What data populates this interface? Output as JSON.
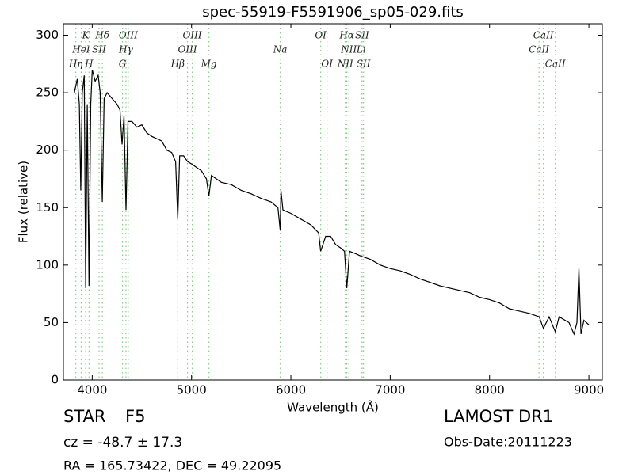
{
  "chart_data": {
    "type": "line",
    "title": "spec-55919-F5591906_sp05-029.fits",
    "xlabel": "Wavelength (Å)",
    "ylabel": "Flux (relative)",
    "xlim": [
      3710,
      9135
    ],
    "ylim": [
      0,
      310
    ],
    "xticks": [
      4000,
      5000,
      6000,
      7000,
      8000,
      9000
    ],
    "yticks": [
      0,
      50,
      100,
      150,
      200,
      250,
      300
    ],
    "line_color": "#8c8",
    "x": [
      3820,
      3850,
      3870,
      3885,
      3900,
      3920,
      3934,
      3950,
      3968,
      3985,
      4000,
      4030,
      4060,
      4080,
      4102,
      4120,
      4150,
      4200,
      4250,
      4280,
      4300,
      4320,
      4340,
      4360,
      4400,
      4450,
      4500,
      4550,
      4600,
      4650,
      4700,
      4750,
      4800,
      4840,
      4861,
      4880,
      4920,
      4960,
      5000,
      5050,
      5100,
      5150,
      5175,
      5200,
      5250,
      5300,
      5400,
      5500,
      5600,
      5700,
      5800,
      5870,
      5893,
      5900,
      5920,
      6000,
      6100,
      6200,
      6280,
      6300,
      6350,
      6400,
      6450,
      6500,
      6540,
      6563,
      6590,
      6650,
      6700,
      6800,
      6900,
      7000,
      7100,
      7200,
      7300,
      7400,
      7500,
      7600,
      7700,
      7800,
      7900,
      8000,
      8100,
      8200,
      8300,
      8400,
      8500,
      8542,
      8600,
      8662,
      8700,
      8800,
      8850,
      8880,
      8900,
      8920,
      8950,
      9000
    ],
    "series": [
      {
        "name": "flux",
        "color": "#000000",
        "values": [
          250,
          262,
          240,
          165,
          250,
          265,
          80,
          240,
          82,
          240,
          270,
          260,
          265,
          250,
          155,
          245,
          250,
          245,
          240,
          235,
          205,
          230,
          148,
          225,
          225,
          220,
          222,
          215,
          212,
          210,
          208,
          200,
          198,
          190,
          140,
          195,
          195,
          190,
          188,
          185,
          182,
          175,
          160,
          178,
          175,
          172,
          170,
          165,
          162,
          158,
          155,
          150,
          130,
          165,
          148,
          145,
          140,
          135,
          128,
          112,
          125,
          125,
          118,
          115,
          112,
          80,
          112,
          110,
          108,
          105,
          100,
          97,
          95,
          92,
          88,
          85,
          82,
          80,
          78,
          76,
          72,
          70,
          67,
          62,
          60,
          58,
          55,
          45,
          55,
          42,
          55,
          50,
          40,
          50,
          97,
          40,
          52,
          48
        ]
      }
    ],
    "line_labels": [
      [
        {
          "label": "K",
          "x": 3934
        },
        {
          "label": "Hδ",
          "x": 4102
        },
        {
          "label": "OIII",
          "x": 4363
        },
        {
          "label": "OIII",
          "x": 5007
        },
        {
          "label": "OI",
          "x": 6300
        },
        {
          "label": "Hα",
          "x": 6563
        },
        {
          "label": "SII",
          "x": 6717
        },
        {
          "label": "CaII",
          "x": 8542
        }
      ],
      [
        {
          "label": "HeI",
          "x": 3889
        },
        {
          "label": "SII",
          "x": 4069
        },
        {
          "label": "Hγ",
          "x": 4340
        },
        {
          "label": "OIII",
          "x": 4959
        },
        {
          "label": "Na",
          "x": 5893
        },
        {
          "label": "NII",
          "x": 6584
        },
        {
          "label": "Li",
          "x": 6708
        },
        {
          "label": "CaII",
          "x": 8498
        }
      ],
      [
        {
          "label": "Hη",
          "x": 3835
        },
        {
          "label": "H",
          "x": 3968
        },
        {
          "label": "G",
          "x": 4305
        },
        {
          "label": "Hβ",
          "x": 4861
        },
        {
          "label": "Mg",
          "x": 5175
        },
        {
          "label": "OI",
          "x": 6364
        },
        {
          "label": "NII",
          "x": 6548
        },
        {
          "label": "SII",
          "x": 6731
        },
        {
          "label": "CaII",
          "x": 8662
        }
      ]
    ],
    "object_class": "STAR",
    "subclass": "F5",
    "redshift_text": "cz = -48.7 ± 17.3",
    "coords_text": "RA = 165.73422, DEC = 49.22095",
    "survey": "LAMOST DR1",
    "obs_date": "Obs-Date:20111223"
  }
}
